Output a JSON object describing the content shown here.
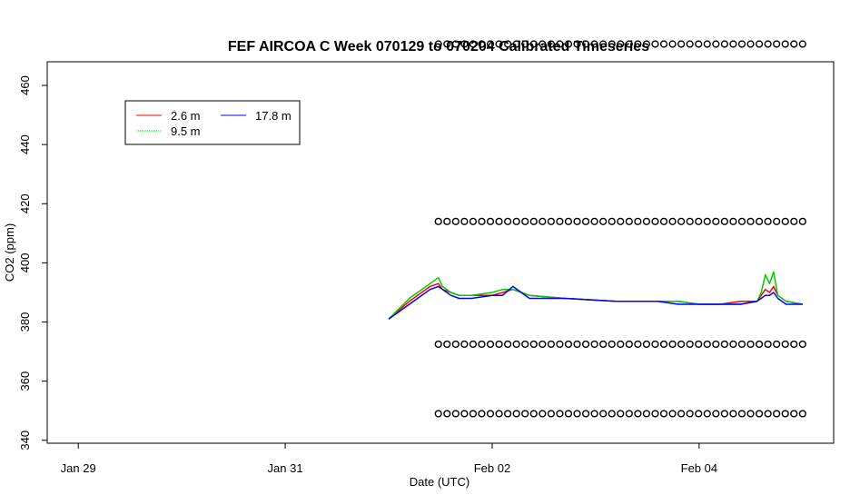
{
  "chart_data": {
    "type": "line",
    "title": "FEF AIRCOA C  Week 070129 to 070204  Calibrated Timeseries",
    "xlabel": "Date (UTC)",
    "ylabel": "CO2 (ppm)",
    "x_unit": "days",
    "xlim": [
      -0.15,
      3.65
    ],
    "ylim": [
      339,
      468
    ],
    "x_ticks": [
      {
        "value": 0,
        "label": "Jan 29"
      },
      {
        "value": 1,
        "label": "Jan 31"
      },
      {
        "value": 2,
        "label": "Feb 02"
      },
      {
        "value": 3,
        "label": "Feb 04"
      }
    ],
    "y_ticks": [
      340,
      360,
      380,
      400,
      420,
      440,
      460
    ],
    "grid": false,
    "legend": {
      "placement": "top-left",
      "entries": [
        {
          "name": "2.6 m",
          "color": "#ff0000"
        },
        {
          "name": "9.5 m",
          "color": "#00cc00"
        },
        {
          "name": "17.8 m",
          "color": "#0000ff"
        }
      ]
    },
    "series": [
      {
        "name": "2.6 m",
        "color": "#ff0000",
        "x": [
          1.5,
          1.6,
          1.7,
          1.74,
          1.76,
          1.8,
          1.84,
          1.9,
          2.0,
          2.05,
          2.1,
          2.18,
          2.35,
          2.6,
          2.8,
          2.9,
          3.0,
          3.1,
          3.2,
          3.28,
          3.3,
          3.32,
          3.34,
          3.36,
          3.38,
          3.42,
          3.5
        ],
        "values": [
          381,
          387,
          392,
          393,
          391,
          390,
          389,
          389,
          389,
          390,
          391,
          389,
          388,
          387,
          387,
          387,
          386,
          386,
          387,
          387,
          389,
          391,
          390,
          392,
          389,
          387,
          386
        ]
      },
      {
        "name": "9.5 m",
        "color": "#00cc00",
        "x": [
          1.5,
          1.6,
          1.7,
          1.74,
          1.76,
          1.8,
          1.84,
          1.9,
          2.0,
          2.05,
          2.1,
          2.18,
          2.35,
          2.6,
          2.8,
          2.9,
          3.0,
          3.1,
          3.2,
          3.28,
          3.3,
          3.32,
          3.34,
          3.36,
          3.38,
          3.42,
          3.5
        ],
        "values": [
          381,
          388,
          393,
          395,
          392,
          390,
          389,
          389,
          390,
          391,
          391,
          389,
          388,
          387,
          387,
          387,
          386,
          386,
          386,
          387,
          390,
          396,
          393,
          397,
          389,
          387,
          386
        ]
      },
      {
        "name": "17.8 m",
        "color": "#0000ff",
        "x": [
          1.5,
          1.6,
          1.7,
          1.74,
          1.76,
          1.8,
          1.84,
          1.9,
          2.0,
          2.05,
          2.1,
          2.18,
          2.35,
          2.6,
          2.8,
          2.9,
          3.0,
          3.1,
          3.2,
          3.28,
          3.3,
          3.32,
          3.34,
          3.36,
          3.38,
          3.42,
          3.5
        ],
        "values": [
          381,
          386,
          391,
          392,
          391,
          389,
          388,
          388,
          389,
          389,
          392,
          388,
          388,
          387,
          387,
          386,
          386,
          386,
          386,
          387,
          388,
          389,
          389,
          390,
          388,
          386,
          386
        ]
      }
    ],
    "reference_points": {
      "y_levels": [
        474,
        414,
        372.5,
        349
      ],
      "x_start": 1.74,
      "x_end": 3.5,
      "count_per_level": 43
    }
  }
}
